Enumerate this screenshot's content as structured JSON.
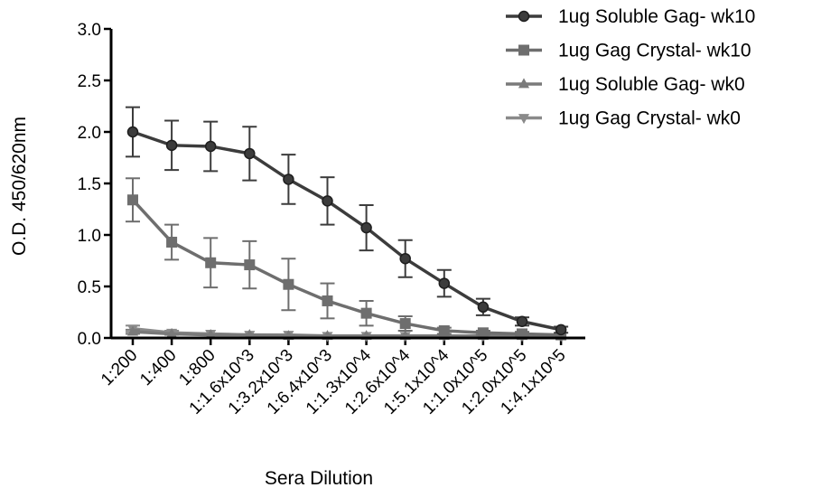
{
  "chart_data": {
    "type": "line",
    "xlabel": "Sera Dilution",
    "ylabel": "O.D. 450/620nm",
    "ylim": [
      0,
      3.0
    ],
    "yticks": [
      "0.0",
      "0.5",
      "1.0",
      "1.5",
      "2.0",
      "2.5",
      "3.0"
    ],
    "categories": [
      "1:200",
      "1:400",
      "1:800",
      "1:1.6x10^3",
      "1:3.2x10^3",
      "1:6.4x10^3",
      "1:1.3x10^4",
      "1:2.6x10^4",
      "1:5.1x10^4",
      "1:1.0x10^5",
      "1:2.0x10^5",
      "1:4.1x10^5"
    ],
    "legend_position": "top-right",
    "series": [
      {
        "name": "1ug Soluble Gag- wk10",
        "marker": "circle",
        "color": "#3c3c3c",
        "values": [
          2.0,
          1.87,
          1.86,
          1.79,
          1.54,
          1.33,
          1.07,
          0.77,
          0.53,
          0.3,
          0.16,
          0.08
        ],
        "errors": [
          0.24,
          0.24,
          0.24,
          0.26,
          0.24,
          0.23,
          0.22,
          0.18,
          0.13,
          0.08,
          0.04,
          0.03
        ]
      },
      {
        "name": "1ug Gag Crystal- wk10",
        "marker": "square",
        "color": "#6e6e6e",
        "values": [
          1.34,
          0.93,
          0.73,
          0.71,
          0.52,
          0.36,
          0.24,
          0.14,
          0.07,
          0.05,
          0.04,
          0.03
        ],
        "errors": [
          0.21,
          0.17,
          0.24,
          0.23,
          0.25,
          0.17,
          0.12,
          0.07,
          0.03,
          0.02,
          0.02,
          0.01
        ]
      },
      {
        "name": "1ug Soluble Gag- wk0",
        "marker": "triangle-up",
        "color": "#7a7a7a",
        "values": [
          0.06,
          0.04,
          0.03,
          0.03,
          0.02,
          0.02,
          0.02,
          0.02,
          0.02,
          0.02,
          0.02,
          0.02
        ],
        "errors": [
          0.02,
          0.01,
          0.01,
          0.01,
          0.01,
          0.01,
          0.01,
          0.01,
          0.01,
          0.01,
          0.01,
          0.01
        ]
      },
      {
        "name": "1ug Gag Crystal- wk0",
        "marker": "triangle-down",
        "color": "#8a8a8a",
        "values": [
          0.09,
          0.05,
          0.04,
          0.03,
          0.03,
          0.02,
          0.02,
          0.02,
          0.02,
          0.02,
          0.02,
          0.02
        ],
        "errors": [
          0.03,
          0.02,
          0.01,
          0.01,
          0.01,
          0.01,
          0.01,
          0.01,
          0.01,
          0.01,
          0.01,
          0.01
        ]
      }
    ]
  }
}
